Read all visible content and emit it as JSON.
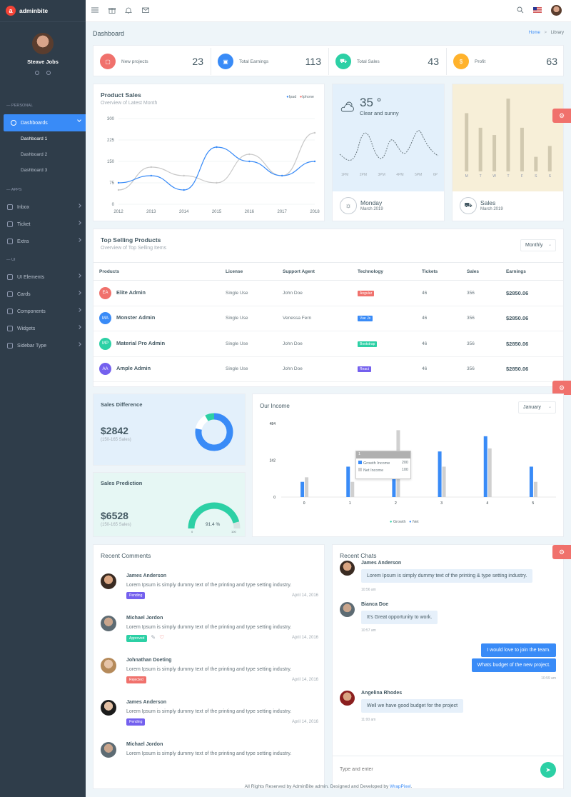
{
  "brand": {
    "name": "adminbite",
    "logo_letter": "a"
  },
  "profile": {
    "name": "Steave Jobs"
  },
  "sidebar": {
    "sections": {
      "personal": "— PERSONAL",
      "apps": "— APPS",
      "ui": "— UI"
    },
    "dashboards": "Dashboards",
    "sub_items": [
      "Dashboard 1",
      "Dashboard 2",
      "Dashboard 3"
    ],
    "apps_items": [
      "Inbox",
      "Ticket",
      "Extra"
    ],
    "ui_items": [
      "UI Elements",
      "Cards",
      "Components",
      "Widgets",
      "Sidebar Type"
    ]
  },
  "header": {
    "title": "Dashboard",
    "crumb_home": "Home",
    "crumb_sep": ">",
    "crumb_current": "Library"
  },
  "stats": [
    {
      "label": "New projects",
      "value": "23",
      "color": "#f0716c",
      "icon": "briefcase-icon"
    },
    {
      "label": "Total Earnings",
      "value": "113",
      "color": "#398bf7",
      "icon": "wallet-icon"
    },
    {
      "label": "Total Sales",
      "value": "43",
      "color": "#2cd07e",
      "icon": "cart-icon"
    },
    {
      "label": "Profit",
      "value": "63",
      "color": "#ffb22b",
      "icon": "dollar-icon"
    }
  ],
  "product_sales": {
    "title": "Product Sales",
    "subtitle": "Overview of Latest Month",
    "legend": [
      "Ipad",
      "Iphone"
    ]
  },
  "weather": {
    "temp": "35 °",
    "desc": "Clear and sunny",
    "day": "Monday",
    "date": "March 2019",
    "times": [
      "1PM",
      "2PM",
      "3PM",
      "4PM",
      "5PM",
      "6P"
    ]
  },
  "sales_mini": {
    "title": "Sales",
    "date": "March 2019",
    "days": [
      "M",
      "T",
      "W",
      "T",
      "F",
      "S",
      "S"
    ]
  },
  "top_products": {
    "title": "Top Selling Products",
    "subtitle": "Overview of Top Selling Items",
    "filter": "Monthly",
    "columns": [
      "Products",
      "License",
      "Support Agent",
      "Technology",
      "Tickets",
      "Sales",
      "Earnings"
    ],
    "rows": [
      {
        "initials": "EA",
        "av_color": "#f0716c",
        "name": "Elite Admin",
        "license": "Single Use",
        "agent": "John Doe",
        "tech": "Angular",
        "tech_color": "#f0716c",
        "tickets": "46",
        "sales": "356",
        "earnings": "$2850.06"
      },
      {
        "initials": "MA",
        "av_color": "#398bf7",
        "name": "Monster Admin",
        "license": "Single Use",
        "agent": "Venessa Fern",
        "tech": "Vue Js",
        "tech_color": "#398bf7",
        "tickets": "46",
        "sales": "356",
        "earnings": "$2850.06"
      },
      {
        "initials": "MP",
        "av_color": "#2cd0a5",
        "name": "Material Pro Admin",
        "license": "Single Use",
        "agent": "John Doe",
        "tech": "Bootstrap",
        "tech_color": "#2cd0a5",
        "tickets": "46",
        "sales": "356",
        "earnings": "$2850.06"
      },
      {
        "initials": "AA",
        "av_color": "#7460ee",
        "name": "Ample Admin",
        "license": "Single Use",
        "agent": "John Doe",
        "tech": "React",
        "tech_color": "#7460ee",
        "tickets": "46",
        "sales": "356",
        "earnings": "$2850.06"
      }
    ]
  },
  "sales_difference": {
    "title": "Sales Difference",
    "value": "$2842",
    "range": "(150-165 Sales)",
    "share": 0.78
  },
  "sales_prediction": {
    "title": "Sales Prediction",
    "value": "$6528",
    "range": "(150-165 Sales)",
    "percent": "91.4 %",
    "gauge_min": "0",
    "gauge_max": "100"
  },
  "income": {
    "title": "Our Income",
    "filter": "January",
    "tooltip": {
      "index": "1",
      "growth_label": "Growth Income",
      "growth_value": "200",
      "net_label": "Net Income",
      "net_value": "100"
    },
    "legend": [
      "Growth",
      "Net"
    ]
  },
  "comments": {
    "title": "Recent Comments",
    "items": [
      {
        "name": "James Anderson",
        "text": "Lorem Ipsum is simply dummy text of the printing and type setting industry.",
        "badge": "Pending",
        "badge_color": "#7460ee",
        "date": "April 14, 2016"
      },
      {
        "name": "Michael Jordon",
        "text": "Lorem Ipsum is simply dummy text of the printing and type setting industry.",
        "badge": "Approved",
        "badge_color": "#2cd0a5",
        "date": "April 14, 2016"
      },
      {
        "name": "Johnathan Doeting",
        "text": "Lorem Ipsum is simply dummy text of the printing and type setting industry.",
        "badge": "Rejected",
        "badge_color": "#f0716c",
        "date": "April 14, 2016"
      },
      {
        "name": "James Anderson",
        "text": "Lorem Ipsum is simply dummy text of the printing and type setting industry.",
        "badge": "Pending",
        "badge_color": "#7460ee",
        "date": "April 14, 2016"
      },
      {
        "name": "Michael Jordon",
        "text": "Lorem Ipsum is simply dummy text of the printing and type setting industry.",
        "badge": "",
        "badge_color": "#2cd0a5",
        "date": ""
      }
    ]
  },
  "chats": {
    "title": "Recent Chats",
    "m1_name": "James Anderson",
    "m1_text": "Lorem Ipsum is simply dummy text of the printing & type setting industry.",
    "m1_time": "10:56 am",
    "m2_name": "Bianca Doe",
    "m2_text": "It's Great opportunity to work.",
    "m2_time": "10:57 am",
    "m3_text": "I would love to join the team.",
    "m4_text": "Whats budget of the new project.",
    "m34_time": "10:59 am",
    "m5_name": "Angelina Rhodes",
    "m5_text": "Well we have good budget for the project",
    "m5_time": "11:00 am",
    "input_placeholder": "Type and enter"
  },
  "footer": {
    "text": "All Rights Reserved by AdminBite admin. Designed and Developed by ",
    "link": "WrapPixel",
    "end": "."
  },
  "chart_data": [
    {
      "type": "line",
      "title": "Product Sales",
      "x": [
        "2012",
        "2013",
        "2014",
        "2015",
        "2016",
        "2017",
        "2018"
      ],
      "ylim": [
        0,
        300
      ],
      "yticks": [
        0,
        75,
        150,
        225,
        300
      ],
      "series": [
        {
          "name": "Ipad",
          "color": "#398bf7",
          "values": [
            75,
            100,
            50,
            200,
            150,
            100,
            150
          ]
        },
        {
          "name": "Iphone",
          "color": "#c8c8c8",
          "values": [
            50,
            130,
            100,
            75,
            175,
            100,
            250
          ]
        }
      ]
    },
    {
      "type": "bar",
      "title": "Our Income",
      "categories": [
        "0",
        "1",
        "2",
        "3",
        "4",
        "5"
      ],
      "ylim": [
        0,
        484
      ],
      "yticks": [
        0,
        242,
        484
      ],
      "series": [
        {
          "name": "Growth",
          "color": "#398bf7",
          "values": [
            100,
            200,
            250,
            300,
            400,
            200
          ]
        },
        {
          "name": "Net",
          "color": "#d0d0d0",
          "values": [
            130,
            100,
            440,
            200,
            320,
            100
          ]
        }
      ]
    },
    {
      "type": "bar",
      "title": "Sales",
      "categories": [
        "M",
        "T",
        "W",
        "T",
        "F",
        "S",
        "S"
      ],
      "values": [
        8,
        6,
        5,
        10,
        6,
        2,
        3.5
      ],
      "ylim": [
        0,
        10.5
      ]
    }
  ]
}
